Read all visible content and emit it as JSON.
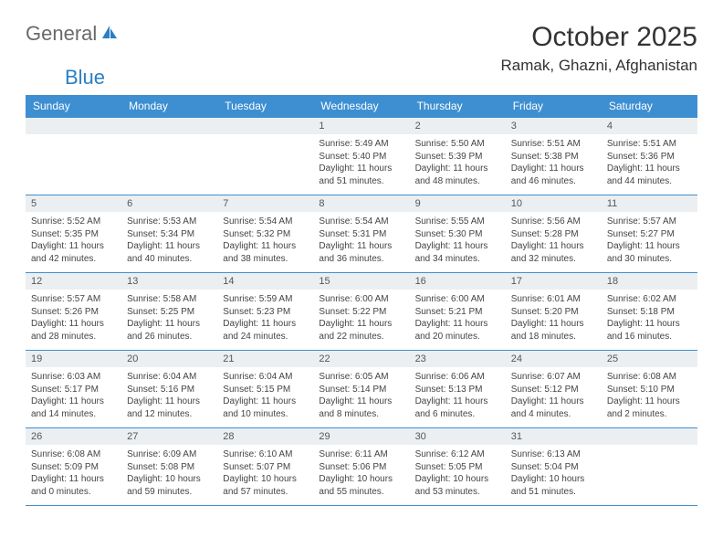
{
  "logo": {
    "text1": "General",
    "text2": "Blue"
  },
  "title": "October 2025",
  "location": "Ramak, Ghazni, Afghanistan",
  "colors": {
    "header_bg": "#3d8fd1",
    "daynum_bg": "#eceff2",
    "border": "#3d8fd1",
    "logo_gray": "#6a6a6a",
    "logo_blue": "#2a7fc4"
  },
  "dayNames": [
    "Sunday",
    "Monday",
    "Tuesday",
    "Wednesday",
    "Thursday",
    "Friday",
    "Saturday"
  ],
  "weeks": [
    [
      null,
      null,
      null,
      {
        "n": "1",
        "sr": "5:49 AM",
        "ss": "5:40 PM",
        "dl": "11 hours and 51 minutes."
      },
      {
        "n": "2",
        "sr": "5:50 AM",
        "ss": "5:39 PM",
        "dl": "11 hours and 48 minutes."
      },
      {
        "n": "3",
        "sr": "5:51 AM",
        "ss": "5:38 PM",
        "dl": "11 hours and 46 minutes."
      },
      {
        "n": "4",
        "sr": "5:51 AM",
        "ss": "5:36 PM",
        "dl": "11 hours and 44 minutes."
      }
    ],
    [
      {
        "n": "5",
        "sr": "5:52 AM",
        "ss": "5:35 PM",
        "dl": "11 hours and 42 minutes."
      },
      {
        "n": "6",
        "sr": "5:53 AM",
        "ss": "5:34 PM",
        "dl": "11 hours and 40 minutes."
      },
      {
        "n": "7",
        "sr": "5:54 AM",
        "ss": "5:32 PM",
        "dl": "11 hours and 38 minutes."
      },
      {
        "n": "8",
        "sr": "5:54 AM",
        "ss": "5:31 PM",
        "dl": "11 hours and 36 minutes."
      },
      {
        "n": "9",
        "sr": "5:55 AM",
        "ss": "5:30 PM",
        "dl": "11 hours and 34 minutes."
      },
      {
        "n": "10",
        "sr": "5:56 AM",
        "ss": "5:28 PM",
        "dl": "11 hours and 32 minutes."
      },
      {
        "n": "11",
        "sr": "5:57 AM",
        "ss": "5:27 PM",
        "dl": "11 hours and 30 minutes."
      }
    ],
    [
      {
        "n": "12",
        "sr": "5:57 AM",
        "ss": "5:26 PM",
        "dl": "11 hours and 28 minutes."
      },
      {
        "n": "13",
        "sr": "5:58 AM",
        "ss": "5:25 PM",
        "dl": "11 hours and 26 minutes."
      },
      {
        "n": "14",
        "sr": "5:59 AM",
        "ss": "5:23 PM",
        "dl": "11 hours and 24 minutes."
      },
      {
        "n": "15",
        "sr": "6:00 AM",
        "ss": "5:22 PM",
        "dl": "11 hours and 22 minutes."
      },
      {
        "n": "16",
        "sr": "6:00 AM",
        "ss": "5:21 PM",
        "dl": "11 hours and 20 minutes."
      },
      {
        "n": "17",
        "sr": "6:01 AM",
        "ss": "5:20 PM",
        "dl": "11 hours and 18 minutes."
      },
      {
        "n": "18",
        "sr": "6:02 AM",
        "ss": "5:18 PM",
        "dl": "11 hours and 16 minutes."
      }
    ],
    [
      {
        "n": "19",
        "sr": "6:03 AM",
        "ss": "5:17 PM",
        "dl": "11 hours and 14 minutes."
      },
      {
        "n": "20",
        "sr": "6:04 AM",
        "ss": "5:16 PM",
        "dl": "11 hours and 12 minutes."
      },
      {
        "n": "21",
        "sr": "6:04 AM",
        "ss": "5:15 PM",
        "dl": "11 hours and 10 minutes."
      },
      {
        "n": "22",
        "sr": "6:05 AM",
        "ss": "5:14 PM",
        "dl": "11 hours and 8 minutes."
      },
      {
        "n": "23",
        "sr": "6:06 AM",
        "ss": "5:13 PM",
        "dl": "11 hours and 6 minutes."
      },
      {
        "n": "24",
        "sr": "6:07 AM",
        "ss": "5:12 PM",
        "dl": "11 hours and 4 minutes."
      },
      {
        "n": "25",
        "sr": "6:08 AM",
        "ss": "5:10 PM",
        "dl": "11 hours and 2 minutes."
      }
    ],
    [
      {
        "n": "26",
        "sr": "6:08 AM",
        "ss": "5:09 PM",
        "dl": "11 hours and 0 minutes."
      },
      {
        "n": "27",
        "sr": "6:09 AM",
        "ss": "5:08 PM",
        "dl": "10 hours and 59 minutes."
      },
      {
        "n": "28",
        "sr": "6:10 AM",
        "ss": "5:07 PM",
        "dl": "10 hours and 57 minutes."
      },
      {
        "n": "29",
        "sr": "6:11 AM",
        "ss": "5:06 PM",
        "dl": "10 hours and 55 minutes."
      },
      {
        "n": "30",
        "sr": "6:12 AM",
        "ss": "5:05 PM",
        "dl": "10 hours and 53 minutes."
      },
      {
        "n": "31",
        "sr": "6:13 AM",
        "ss": "5:04 PM",
        "dl": "10 hours and 51 minutes."
      },
      null
    ]
  ],
  "labels": {
    "sunrise": "Sunrise: ",
    "sunset": "Sunset: ",
    "daylight": "Daylight: "
  }
}
